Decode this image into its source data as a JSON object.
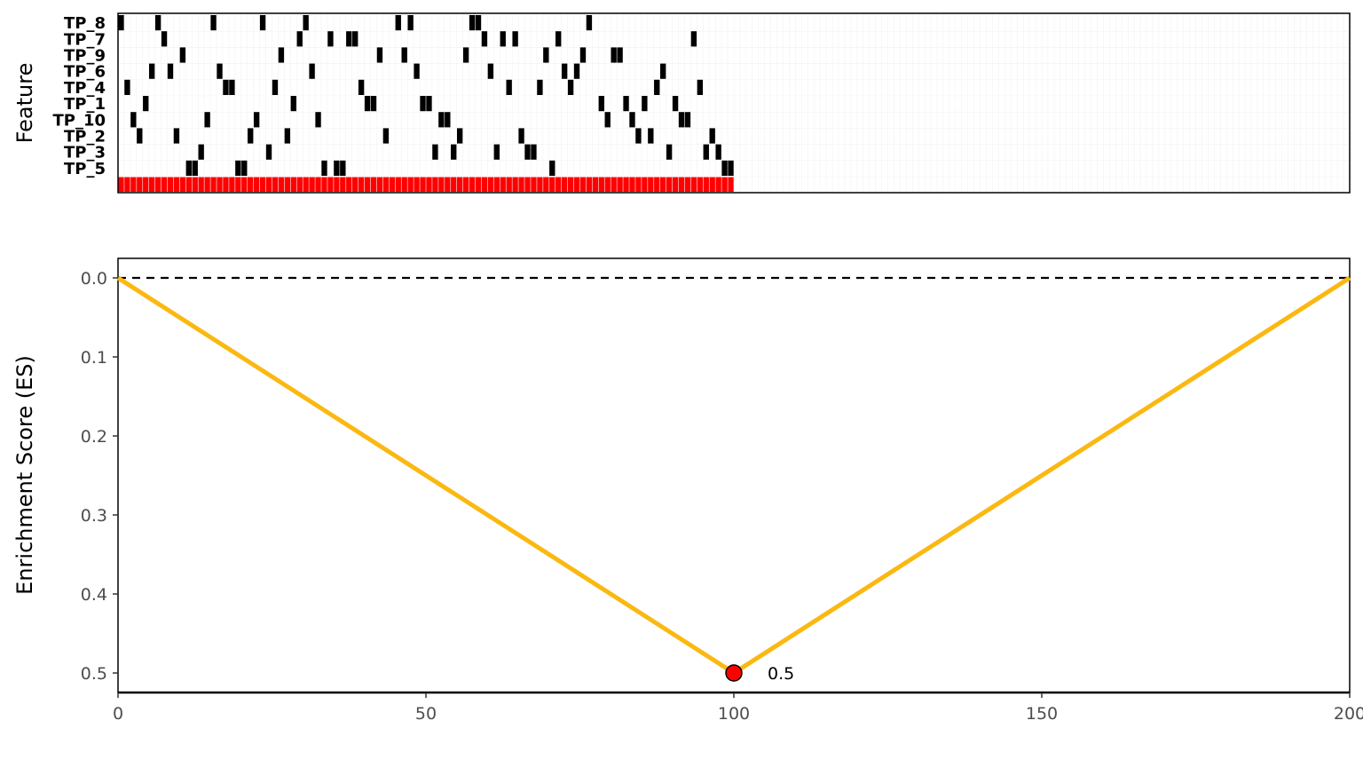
{
  "chart_data": [
    {
      "type": "heatmap",
      "ylabel": "Feature",
      "xlim": [
        1,
        200
      ],
      "rows": [
        {
          "feature": "TP_8",
          "positions": [
            1,
            7,
            16,
            24,
            31,
            46,
            48,
            58,
            59,
            77
          ]
        },
        {
          "feature": "TP_7",
          "positions": [
            8,
            30,
            35,
            38,
            39,
            60,
            63,
            65,
            72,
            94
          ]
        },
        {
          "feature": "TP_9",
          "positions": [
            11,
            27,
            43,
            47,
            57,
            70,
            76,
            81,
            82
          ]
        },
        {
          "feature": "TP_6",
          "positions": [
            6,
            9,
            17,
            32,
            49,
            61,
            73,
            75,
            89
          ]
        },
        {
          "feature": "TP_4",
          "positions": [
            2,
            18,
            19,
            26,
            40,
            64,
            69,
            74,
            88,
            95
          ]
        },
        {
          "feature": "TP_1",
          "positions": [
            5,
            29,
            41,
            42,
            50,
            51,
            79,
            83,
            86,
            91
          ]
        },
        {
          "feature": "TP_10",
          "positions": [
            3,
            15,
            23,
            33,
            53,
            54,
            80,
            84,
            92,
            93
          ]
        },
        {
          "feature": "TP_2",
          "positions": [
            4,
            10,
            22,
            28,
            44,
            56,
            66,
            85,
            87,
            97
          ]
        },
        {
          "feature": "TP_3",
          "positions": [
            14,
            25,
            52,
            55,
            62,
            67,
            68,
            90,
            96,
            98
          ]
        },
        {
          "feature": "TP_5",
          "positions": [
            12,
            13,
            20,
            21,
            34,
            36,
            37,
            71,
            99,
            100
          ]
        }
      ],
      "highlight_row": {
        "from": 1,
        "to": 100,
        "color": "#ff0000"
      }
    },
    {
      "type": "line",
      "ylabel": "Enrichment Score (ES)",
      "x": [
        0,
        100,
        200
      ],
      "y": [
        0,
        0.5,
        0
      ],
      "xlim": [
        0,
        200
      ],
      "ylim": [
        0,
        0.525
      ],
      "y_reversed": true,
      "xticks": [
        "0",
        "50",
        "100",
        "150",
        "200"
      ],
      "yticks": [
        "0.0",
        "0.1",
        "0.2",
        "0.3",
        "0.4",
        "0.5"
      ],
      "line_color": "#fbb812",
      "reference_line": {
        "y": 0,
        "style": "dashed"
      },
      "peak": {
        "x": 100,
        "y": 0.5,
        "label": "0.5",
        "color": "#ff0000"
      }
    }
  ]
}
